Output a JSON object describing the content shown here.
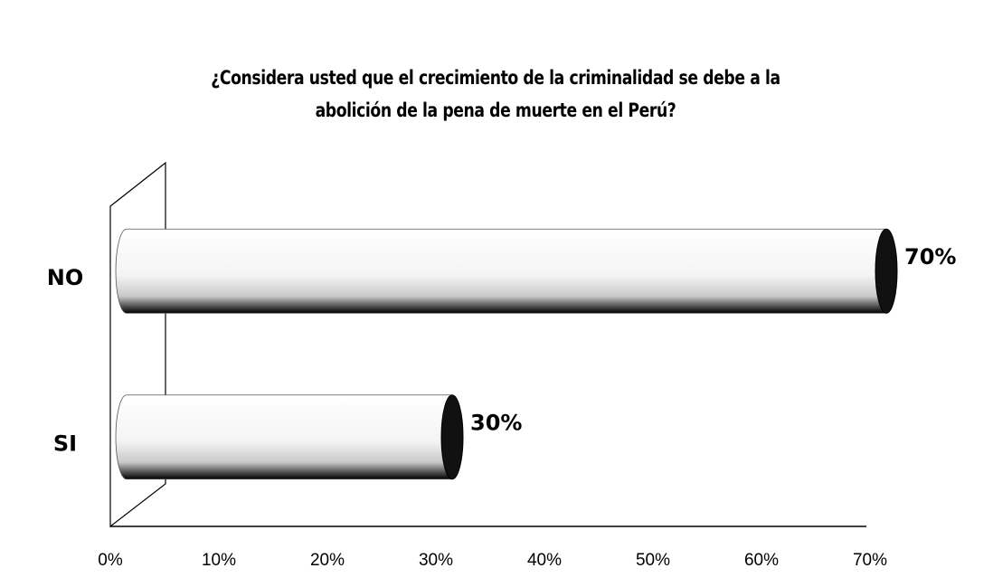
{
  "chart_data": {
    "type": "bar",
    "orientation": "horizontal",
    "title": "¿Considera  usted que el crecimiento de la criminalidad se debe a la abolición de la pena de muerte en el Perú?",
    "categories": [
      "NO",
      "SI"
    ],
    "values": [
      70,
      30
    ],
    "value_labels": [
      "70%",
      "30%"
    ],
    "xlim": [
      0,
      70
    ],
    "xticks": [
      {
        "value": 0,
        "label": "0%"
      },
      {
        "value": 10,
        "label": "10%"
      },
      {
        "value": 20,
        "label": "20%"
      },
      {
        "value": 30,
        "label": "30%"
      },
      {
        "value": 40,
        "label": "40%"
      },
      {
        "value": 50,
        "label": "50%"
      },
      {
        "value": 60,
        "label": "60%"
      },
      {
        "value": 70,
        "label": "70%"
      }
    ],
    "color": "#f2f2f2"
  }
}
